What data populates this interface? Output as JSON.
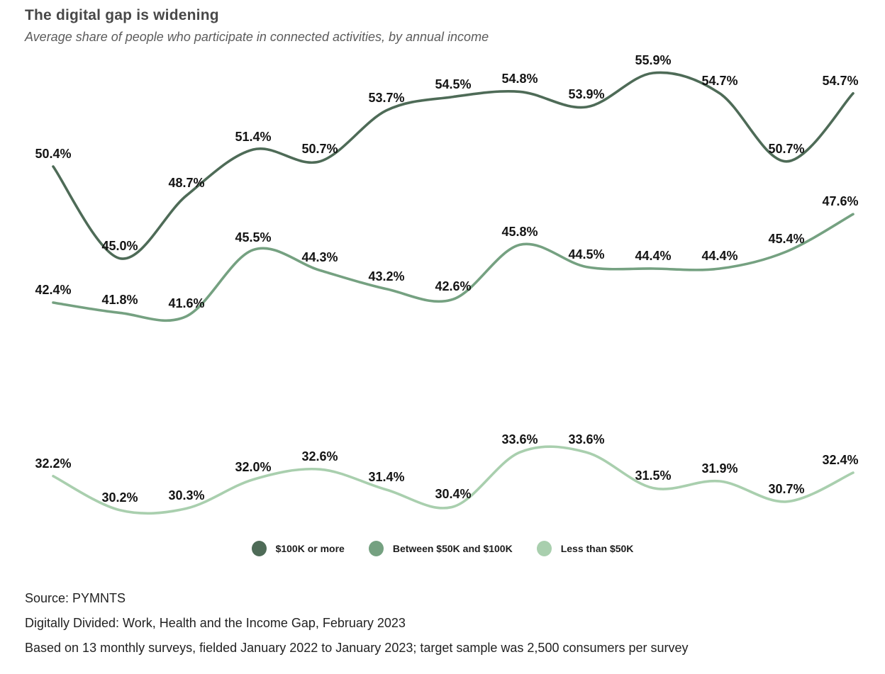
{
  "header": {
    "title": "The digital gap is widening",
    "subtitle": "Average share of people who participate in connected activities, by annual income"
  },
  "chart_data": {
    "type": "line",
    "title": "The digital gap is widening",
    "subtitle": "Average share of people who participate in connected activities, by annual income",
    "n_points_per_series": 13,
    "value_suffix": "%",
    "data_labels": true,
    "grid": false,
    "axes_hidden": true,
    "legend_position": "bottom",
    "ylim": [
      28,
      58
    ],
    "series": [
      {
        "name": "$100K or more",
        "color": "#4e6b57",
        "values": [
          50.4,
          45.0,
          48.7,
          51.4,
          50.7,
          53.7,
          54.5,
          54.8,
          53.9,
          55.9,
          54.7,
          50.7,
          54.7
        ]
      },
      {
        "name": "Between $50K and $100K",
        "color": "#75a181",
        "values": [
          42.4,
          41.8,
          41.6,
          45.5,
          44.3,
          43.2,
          42.6,
          45.8,
          44.5,
          44.4,
          44.4,
          45.4,
          47.6
        ]
      },
      {
        "name": "Less than $50K",
        "color": "#a9cfae",
        "values": [
          32.2,
          30.2,
          30.3,
          32.0,
          32.6,
          31.4,
          30.4,
          33.6,
          33.6,
          31.5,
          31.9,
          30.7,
          32.4
        ]
      }
    ]
  },
  "footer": {
    "lines": [
      "Source: PYMNTS",
      "Digitally Divided: Work, Health and the Income Gap, February 2023",
      "Based on 13 monthly surveys, fielded January 2022 to January 2023; target sample was 2,500 consumers per survey"
    ]
  }
}
